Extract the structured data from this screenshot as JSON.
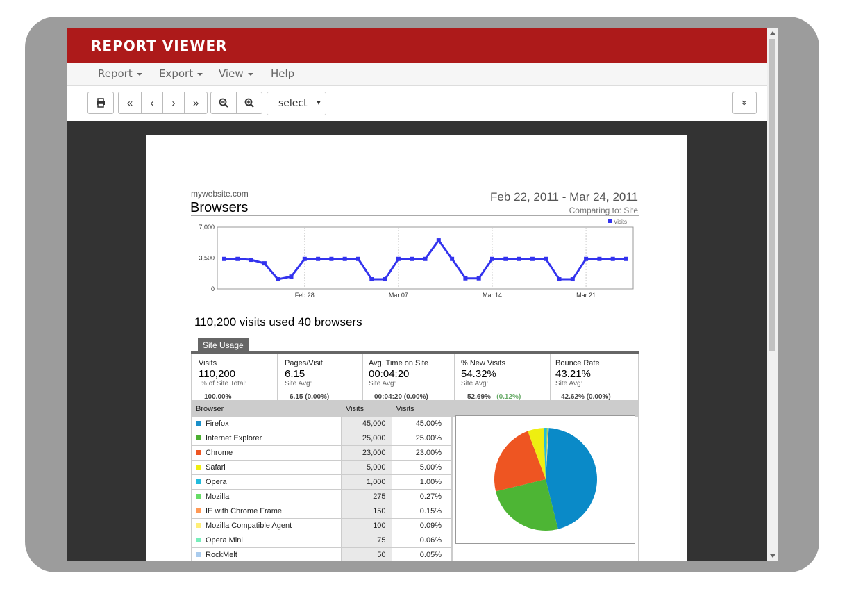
{
  "app": {
    "title": "REPORT VIEWER"
  },
  "menu": [
    {
      "label": "Report",
      "dropdown": true
    },
    {
      "label": "Export",
      "dropdown": true
    },
    {
      "label": "View",
      "dropdown": true
    },
    {
      "label": "Help",
      "dropdown": false
    }
  ],
  "toolbar": {
    "print_icon": "print-icon",
    "first_page": "«",
    "prev_page": "‹",
    "next_page": "›",
    "last_page": "»",
    "zoom_out_icon": "zoom-out-icon",
    "zoom_in_icon": "zoom-in-icon",
    "zoom_select": "select",
    "collapse": "»"
  },
  "report": {
    "site": "mywebsite.com",
    "title": "Browsers",
    "date_range": "Feb 22, 2011 -  Mar 24, 2011",
    "comparing": "Comparing to: Site",
    "summary": "110,200 visits used 40 browsers",
    "tab": "Site Usage"
  },
  "stats": [
    {
      "label": "Visits",
      "value": "110,200",
      "sub": "% of Site Total:",
      "foot": "100.00%",
      "delta": ""
    },
    {
      "label": "Pages/Visit",
      "value": "6.15",
      "sub": "Site Avg:",
      "foot": "6.15 (0.00%)",
      "delta": ""
    },
    {
      "label": "Avg. Time on Site",
      "value": "00:04:20",
      "sub": "Site Avg:",
      "foot": "00:04:20 (0.00%)",
      "delta": ""
    },
    {
      "label": "% New Visits",
      "value": "54.32%",
      "sub": "Site Avg:",
      "foot": "52.69%",
      "delta": "(0.12%)"
    },
    {
      "label": "Bounce Rate",
      "value": "43.21%",
      "sub": "Site Avg:",
      "foot": "42.62% (0.00%)",
      "delta": ""
    }
  ],
  "table": {
    "headers": [
      "Browser",
      "Visits",
      "Visits"
    ],
    "rows": [
      {
        "name": "Firefox",
        "visits": "45,000",
        "pct": "45.00%",
        "color": "#1a8fc9"
      },
      {
        "name": "Internet Explorer",
        "visits": "25,000",
        "pct": "25.00%",
        "color": "#4caf32"
      },
      {
        "name": "Chrome",
        "visits": "23,000",
        "pct": "23.00%",
        "color": "#ee5522"
      },
      {
        "name": "Safari",
        "visits": "5,000",
        "pct": "5.00%",
        "color": "#eeee11"
      },
      {
        "name": "Opera",
        "visits": "1,000",
        "pct": "1.00%",
        "color": "#22bbdd"
      },
      {
        "name": "Mozilla",
        "visits": "275",
        "pct": "0.27%",
        "color": "#66dd66"
      },
      {
        "name": "IE with Chrome Frame",
        "visits": "150",
        "pct": "0.15%",
        "color": "#ff9955"
      },
      {
        "name": "Mozilla Compatible Agent",
        "visits": "100",
        "pct": "0.09%",
        "color": "#ffee77"
      },
      {
        "name": "Opera Mini",
        "visits": "75",
        "pct": "0.06%",
        "color": "#77eebb"
      },
      {
        "name": "RockMelt",
        "visits": "50",
        "pct": "0.05%",
        "color": "#aaccee"
      }
    ]
  },
  "chart_data": [
    {
      "type": "line",
      "legend": [
        "Visits"
      ],
      "legend_position": "top-right",
      "y_ticks": [
        "0",
        "3,500",
        "7,000"
      ],
      "ylim": [
        0,
        7000
      ],
      "x_ticks": [
        "Feb 28",
        "Mar 07",
        "Mar 14",
        "Mar 21"
      ],
      "x": [
        "2011-02-22",
        "2011-02-23",
        "2011-02-24",
        "2011-02-25",
        "2011-02-26",
        "2011-02-27",
        "2011-02-28",
        "2011-03-01",
        "2011-03-02",
        "2011-03-03",
        "2011-03-04",
        "2011-03-05",
        "2011-03-06",
        "2011-03-07",
        "2011-03-08",
        "2011-03-09",
        "2011-03-10",
        "2011-03-11",
        "2011-03-12",
        "2011-03-13",
        "2011-03-14",
        "2011-03-15",
        "2011-03-16",
        "2011-03-17",
        "2011-03-18",
        "2011-03-19",
        "2011-03-20",
        "2011-03-21",
        "2011-03-22",
        "2011-03-23",
        "2011-03-24"
      ],
      "series": [
        {
          "name": "Visits",
          "color": "#3333ee",
          "values": [
            3400,
            3400,
            3300,
            2900,
            1100,
            1400,
            3400,
            3400,
            3400,
            3400,
            3400,
            1100,
            1100,
            3400,
            3400,
            3400,
            5500,
            3400,
            1200,
            1200,
            3400,
            3400,
            3400,
            3400,
            3400,
            1100,
            1100,
            3400,
            3400,
            3400,
            3400
          ]
        }
      ],
      "grid": true
    },
    {
      "type": "pie",
      "categories": [
        "Firefox",
        "Internet Explorer",
        "Chrome",
        "Safari",
        "Opera",
        "Mozilla",
        "IE with Chrome Frame",
        "Mozilla Compatible Agent",
        "Opera Mini",
        "RockMelt"
      ],
      "values": [
        45.0,
        25.0,
        23.0,
        5.0,
        1.0,
        0.27,
        0.15,
        0.09,
        0.06,
        0.05
      ],
      "colors": [
        "#0a8ac8",
        "#4db534",
        "#ee5522",
        "#eeee11",
        "#22bbdd",
        "#66dd66",
        "#ff9955",
        "#ffee77",
        "#77eebb",
        "#aaccee"
      ]
    }
  ]
}
